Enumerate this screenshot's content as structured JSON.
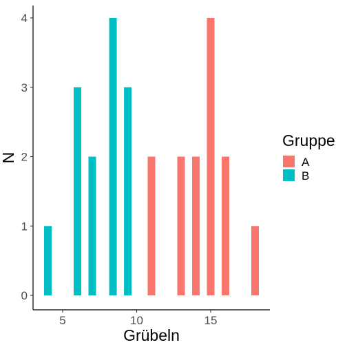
{
  "chart_data": {
    "type": "bar",
    "xlabel": "Grübeln",
    "ylabel": "N",
    "xlim": [
      3,
      19
    ],
    "ylim": [
      0,
      4
    ],
    "x_ticks": [
      5,
      10,
      15
    ],
    "y_ticks": [
      0,
      1,
      2,
      3,
      4
    ],
    "grid": false,
    "legend": {
      "title": "Gruppe",
      "position": "right"
    },
    "series": [
      {
        "name": "A",
        "color": "#F8766D",
        "points": [
          {
            "x": 11,
            "y": 2
          },
          {
            "x": 13,
            "y": 2
          },
          {
            "x": 14,
            "y": 2
          },
          {
            "x": 15,
            "y": 4
          },
          {
            "x": 16,
            "y": 2
          },
          {
            "x": 18,
            "y": 1
          }
        ]
      },
      {
        "name": "B",
        "color": "#00BFC4",
        "points": [
          {
            "x": 4,
            "y": 1
          },
          {
            "x": 6,
            "y": 3
          },
          {
            "x": 7,
            "y": 2
          },
          {
            "x": 8.4,
            "y": 4
          },
          {
            "x": 9.4,
            "y": 3
          }
        ]
      }
    ]
  }
}
